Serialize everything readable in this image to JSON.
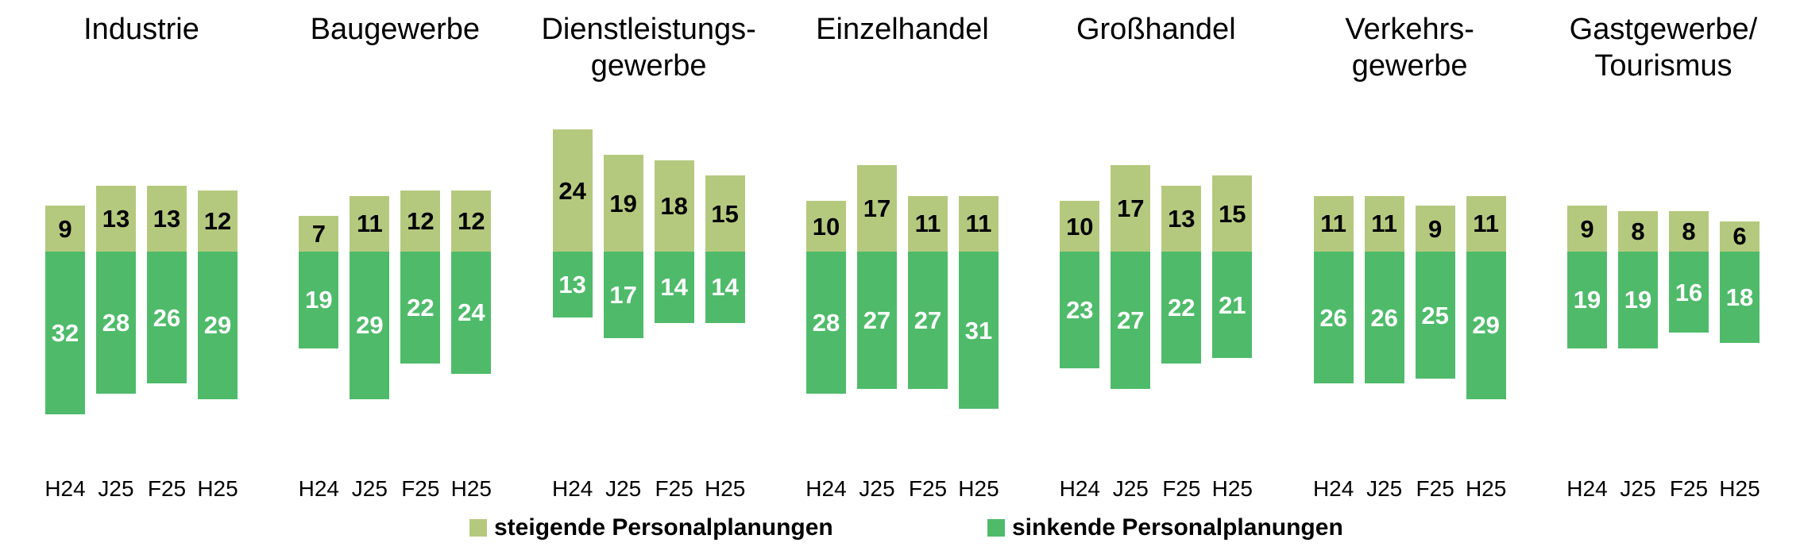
{
  "chart_data": {
    "type": "bar",
    "subtype": "diverging-stacked-columns",
    "title": "",
    "grid": false,
    "axis_lines": false,
    "legend_position": "bottom",
    "periods": [
      "H24",
      "J25",
      "F25",
      "H25"
    ],
    "colors": {
      "rising_segment": "#b5c97e",
      "falling_segment": "#4fbb6a",
      "rising_value_label": "#000000",
      "falling_value_label": "#ffffff",
      "text": "#000000",
      "background": "#ffffff"
    },
    "legend": [
      {
        "label": "steigende Personalplanungen",
        "color": "#b5c97e"
      },
      {
        "label": "sinkende Personalplanungen",
        "color": "#4fbb6a"
      }
    ],
    "groups": [
      {
        "title_lines": [
          "Industrie"
        ],
        "steigende": [
          9,
          13,
          13,
          12
        ],
        "sinkende": [
          32,
          28,
          26,
          29
        ]
      },
      {
        "title_lines": [
          "Baugewerbe"
        ],
        "steigende": [
          7,
          11,
          12,
          12
        ],
        "sinkende": [
          19,
          29,
          22,
          24
        ]
      },
      {
        "title_lines": [
          "Dienstleistungs-",
          "gewerbe"
        ],
        "steigende": [
          24,
          19,
          18,
          15
        ],
        "sinkende": [
          13,
          17,
          14,
          14
        ]
      },
      {
        "title_lines": [
          "Einzelhandel"
        ],
        "steigende": [
          10,
          17,
          11,
          11
        ],
        "sinkende": [
          28,
          27,
          27,
          31
        ]
      },
      {
        "title_lines": [
          "Großhandel"
        ],
        "steigende": [
          10,
          17,
          13,
          15
        ],
        "sinkende": [
          23,
          27,
          22,
          21
        ]
      },
      {
        "title_lines": [
          "Verkehrs-",
          "gewerbe"
        ],
        "steigende": [
          11,
          11,
          9,
          11
        ],
        "sinkende": [
          26,
          26,
          25,
          29
        ]
      },
      {
        "title_lines": [
          "Gastgewerbe/",
          "Tourismus"
        ],
        "steigende": [
          9,
          8,
          8,
          6
        ],
        "sinkende": [
          19,
          19,
          16,
          18
        ]
      }
    ]
  }
}
